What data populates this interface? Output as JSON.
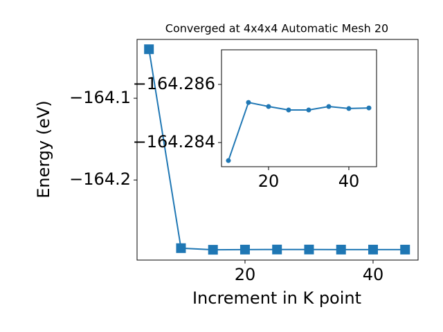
{
  "chart_data": [
    {
      "type": "line",
      "title": "Converged at 4x4x4 Automatic Mesh 20",
      "xlabel": "Increment in K point",
      "ylabel": "Energy (eV)",
      "x": [
        5,
        10,
        15,
        20,
        25,
        30,
        35,
        40,
        45
      ],
      "series": [
        {
          "color": "#1f77b4",
          "marker": "square",
          "values": [
            -164.04,
            -164.2834,
            -164.2854,
            -164.2852,
            -164.2851,
            -164.2851,
            -164.2852,
            -164.2852,
            -164.2852
          ]
        }
      ],
      "xlim": [
        3.14,
        47.03
      ],
      "ylim": [
        -164.298,
        -164.028
      ],
      "xticks": [
        20,
        40
      ],
      "yticks": [
        {
          "value": -164.1,
          "label": "−164.1"
        },
        {
          "value": -164.2,
          "label": "−164.2"
        }
      ]
    },
    {
      "type": "line",
      "x": [
        10,
        15,
        20,
        25,
        30,
        35,
        40,
        45
      ],
      "series": [
        {
          "color": "#1f77b4",
          "marker": "circle",
          "values": [
            -164.28338,
            -164.28538,
            -164.28524,
            -164.28512,
            -164.28512,
            -164.28524,
            -164.28517,
            -164.28519
          ]
        }
      ],
      "xlim": [
        8.28,
        46.9
      ],
      "ylim": [
        -164.28317,
        -164.28719
      ],
      "xticks": [
        20,
        40
      ],
      "yticks": [
        {
          "value": -164.286,
          "label": "−164.286"
        },
        {
          "value": -164.284,
          "label": "−164.284"
        }
      ]
    }
  ]
}
